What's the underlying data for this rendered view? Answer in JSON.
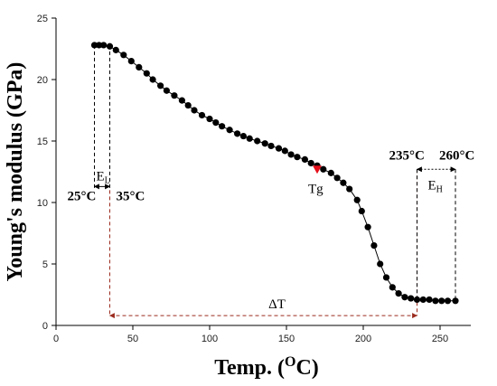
{
  "chart_data": {
    "type": "scatter",
    "title": "",
    "xlabel_main": "Temp. (",
    "xlabel_sup": "O",
    "xlabel_end": "C)",
    "ylabel": "Young's modulus (GPa)",
    "xlim": [
      0,
      270
    ],
    "ylim": [
      0,
      25
    ],
    "xticks": [
      "0",
      "50",
      "100",
      "150",
      "200",
      "250"
    ],
    "yticks": [
      "0",
      "5",
      "10",
      "15",
      "20",
      "25"
    ],
    "grid": false,
    "series": [
      {
        "marker_color": "#000000",
        "line": true,
        "x": [
          25,
          28,
          31,
          35,
          39,
          44,
          49,
          54,
          59,
          63,
          68,
          72,
          77,
          82,
          86,
          90,
          95,
          100,
          104,
          108,
          113,
          118,
          122,
          126,
          131,
          136,
          140,
          145,
          149,
          153,
          157,
          162,
          166,
          170,
          174,
          179,
          183,
          187,
          191,
          196,
          199,
          203,
          207,
          211,
          215,
          219,
          223,
          227,
          231,
          235,
          239,
          243,
          247,
          251,
          255,
          260
        ],
        "y": [
          22.8,
          22.8,
          22.8,
          22.7,
          22.4,
          22.0,
          21.5,
          21.0,
          20.5,
          20.0,
          19.5,
          19.1,
          18.7,
          18.3,
          17.9,
          17.5,
          17.1,
          16.8,
          16.5,
          16.2,
          15.9,
          15.6,
          15.4,
          15.2,
          15.0,
          14.8,
          14.6,
          14.4,
          14.2,
          13.9,
          13.7,
          13.5,
          13.2,
          13.0,
          12.7,
          12.4,
          12.0,
          11.6,
          11.1,
          10.2,
          9.3,
          8.0,
          6.5,
          5.0,
          3.9,
          3.1,
          2.6,
          2.3,
          2.2,
          2.1,
          2.1,
          2.1,
          2.0,
          2.0,
          2.0,
          2.0
        ]
      }
    ],
    "highlight": {
      "x": 170,
      "y": 12.7,
      "color": "#e5101b",
      "label": "Tg"
    },
    "annotations": {
      "el_sub": "L",
      "el_main": "E",
      "eh_main": "E",
      "eh_sub": "H",
      "dt": "ΔT",
      "t25": "25°C",
      "t35": "35°C",
      "t235": "235°C",
      "t260": "260°C",
      "arrow_color": "#9b2b1e"
    }
  }
}
